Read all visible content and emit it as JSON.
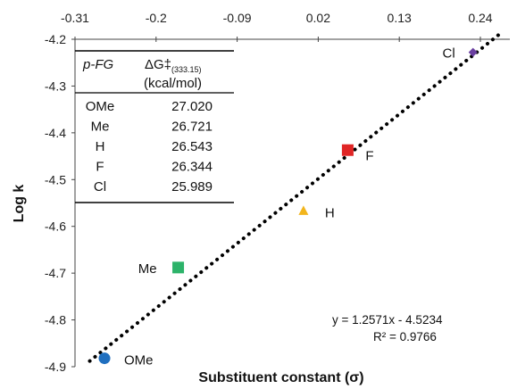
{
  "chart_data": {
    "type": "scatter",
    "xlabel": "Substituent constant (σ)",
    "ylabel": "Log k",
    "xlim": [
      -0.31,
      0.28
    ],
    "ylim": [
      -4.9,
      -4.2
    ],
    "x_ticks": [
      "-0.31",
      "-0.2",
      "-0.09",
      "0.02",
      "0.13",
      "0.24"
    ],
    "y_ticks": [
      "-4.2",
      "-4.3",
      "-4.4",
      "-4.5",
      "-4.6",
      "-4.7",
      "-4.8",
      "-4.9"
    ],
    "points": [
      {
        "label": "OMe",
        "x": -0.27,
        "y": -4.882,
        "shape": "circle",
        "color": "#1f6fbf"
      },
      {
        "label": "Me",
        "x": -0.17,
        "y": -4.688,
        "shape": "square",
        "color": "#2db36a"
      },
      {
        "label": "H",
        "x": 0.0,
        "y": -4.567,
        "shape": "triangle",
        "color": "#f2b51c"
      },
      {
        "label": "F",
        "x": 0.06,
        "y": -4.437,
        "shape": "square",
        "color": "#e02525"
      },
      {
        "label": "Cl",
        "x": 0.23,
        "y": -4.228,
        "shape": "diamond",
        "color": "#6a3fa0"
      }
    ],
    "trendline": {
      "slope": 1.2571,
      "intercept": -4.5234,
      "x_range": [
        -0.29,
        0.27
      ],
      "equation": "y = 1.2571x - 4.5234",
      "r_squared": "R² = 0.9766"
    },
    "inset_table": {
      "header_col1": "p-FG",
      "header_col2_symbol": "ΔG‡",
      "header_col2_sub": "(333.15)",
      "header_col2_unit": "(kcal/mol)",
      "rows": [
        {
          "group": "OMe",
          "value": "27.020"
        },
        {
          "group": "Me",
          "value": "26.721"
        },
        {
          "group": "H",
          "value": "26.543"
        },
        {
          "group": "F",
          "value": "26.344"
        },
        {
          "group": "Cl",
          "value": "25.989"
        }
      ]
    }
  }
}
